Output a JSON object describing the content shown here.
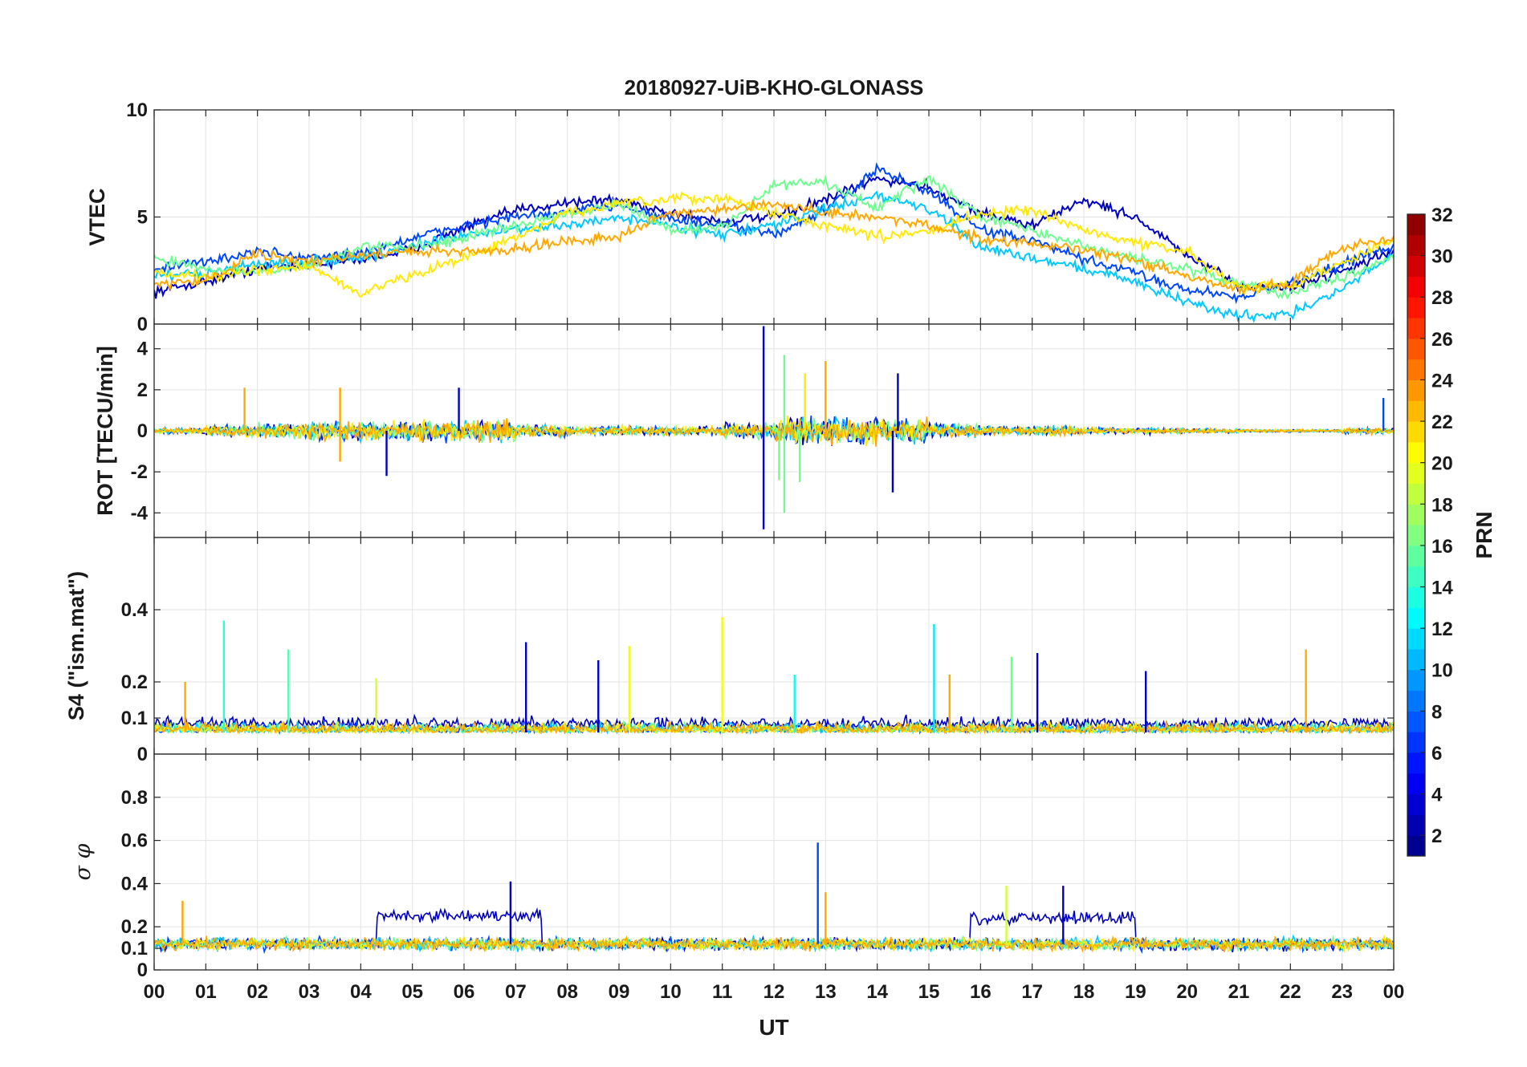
{
  "chart_data": {
    "type": "line",
    "title": "20180927-UiB-KHO-GLONASS",
    "xlabel": "UT",
    "x_tick_labels": [
      "00",
      "01",
      "02",
      "03",
      "04",
      "05",
      "06",
      "07",
      "08",
      "09",
      "10",
      "11",
      "12",
      "13",
      "14",
      "15",
      "16",
      "17",
      "18",
      "19",
      "20",
      "21",
      "22",
      "23",
      "00"
    ],
    "xlim_hours": [
      0,
      24
    ],
    "grid": true,
    "colorbar": {
      "label": "PRN",
      "colormap": "jet",
      "range": [
        1,
        32
      ],
      "tick_labels": [
        "2",
        "4",
        "6",
        "8",
        "10",
        "12",
        "14",
        "16",
        "18",
        "20",
        "22",
        "24",
        "26",
        "28",
        "30",
        "32"
      ]
    },
    "panels": [
      {
        "id": "vtec",
        "ylabel": "VTEC",
        "ylim": [
          0,
          10
        ],
        "ytick_labels": [
          "0",
          "5",
          "10"
        ],
        "ytick_values": [
          0,
          5,
          10
        ],
        "series": [
          {
            "prn": 3,
            "x": [
              0.0,
              1.0,
              2.0,
              3.0,
              4.0,
              5.0,
              6.0,
              7.0,
              8.0,
              9.0,
              10.0,
              11.0,
              12.0,
              13.0,
              14.0,
              15.0,
              16.0,
              17.0,
              18.0,
              19.0,
              20.0,
              21.0,
              22.0,
              23.0,
              24.0
            ],
            "y": [
              1.5,
              2.0,
              2.6,
              2.8,
              3.0,
              3.5,
              4.5,
              5.3,
              5.7,
              5.8,
              5.2,
              4.8,
              5.0,
              5.8,
              6.8,
              6.4,
              5.2,
              4.6,
              5.8,
              5.0,
              3.2,
              1.8,
              1.7,
              2.5,
              3.4
            ]
          },
          {
            "prn": 7,
            "x": [
              0.0,
              1.0,
              2.0,
              3.0,
              4.0,
              5.0,
              6.0,
              7.0,
              8.0,
              9.0,
              10.0,
              11.0,
              12.0,
              13.0,
              14.0,
              15.0,
              16.0,
              17.0,
              18.0,
              19.0,
              20.0,
              21.0,
              22.0,
              23.0,
              24.0
            ],
            "y": [
              2.6,
              2.9,
              3.4,
              3.1,
              3.3,
              4.0,
              4.6,
              5.0,
              5.2,
              5.6,
              4.9,
              4.6,
              4.2,
              5.3,
              7.2,
              6.2,
              4.4,
              3.9,
              3.0,
              2.4,
              1.6,
              1.3,
              1.9,
              2.8,
              3.7
            ]
          },
          {
            "prn": 11,
            "x": [
              0.0,
              1.0,
              2.0,
              3.0,
              4.0,
              5.0,
              6.0,
              7.0,
              8.0,
              9.0,
              10.0,
              11.0,
              12.0,
              13.0,
              14.0,
              15.0,
              16.0,
              17.0,
              18.0,
              19.0,
              20.0,
              21.0,
              22.0,
              23.0,
              24.0
            ],
            "y": [
              2.2,
              2.4,
              2.8,
              2.9,
              3.1,
              3.6,
              4.2,
              4.4,
              4.6,
              5.0,
              4.6,
              4.2,
              4.6,
              5.4,
              6.0,
              5.4,
              3.6,
              3.1,
              2.6,
              2.0,
              1.0,
              0.4,
              0.5,
              1.6,
              3.3
            ]
          },
          {
            "prn": 16,
            "x": [
              0.0,
              1.0,
              2.0,
              3.0,
              4.0,
              5.0,
              6.0,
              7.0,
              8.0,
              9.0,
              10.0,
              11.0,
              12.0,
              13.0,
              14.0,
              15.0,
              16.0,
              17.0,
              18.0,
              19.0,
              20.0,
              21.0,
              22.0,
              23.0,
              24.0
            ],
            "y": [
              3.1,
              2.6,
              2.4,
              2.7,
              3.6,
              3.6,
              4.0,
              4.6,
              5.2,
              5.6,
              4.4,
              4.5,
              6.5,
              6.6,
              5.4,
              6.8,
              5.0,
              4.4,
              3.6,
              3.1,
              2.6,
              1.9,
              1.4,
              2.2,
              3.2
            ]
          },
          {
            "prn": 21,
            "x": [
              0.0,
              1.0,
              2.0,
              3.0,
              4.0,
              5.0,
              6.0,
              7.0,
              8.0,
              9.0,
              10.0,
              11.0,
              12.0,
              13.0,
              14.0,
              15.0,
              16.0,
              17.0,
              18.0,
              19.0,
              20.0,
              21.0,
              22.0,
              23.0,
              24.0
            ],
            "y": [
              2.4,
              2.2,
              2.5,
              2.7,
              1.4,
              2.3,
              3.1,
              4.0,
              5.2,
              5.6,
              5.8,
              5.9,
              5.2,
              4.6,
              4.1,
              4.3,
              5.2,
              5.3,
              4.4,
              3.8,
              3.4,
              1.7,
              1.8,
              2.9,
              3.9
            ]
          },
          {
            "prn": 23,
            "x": [
              0.0,
              1.0,
              2.0,
              3.0,
              4.0,
              5.0,
              6.0,
              7.0,
              8.0,
              9.0,
              10.0,
              11.0,
              12.0,
              13.0,
              14.0,
              15.0,
              16.0,
              17.0,
              18.0,
              19.0,
              20.0,
              21.0,
              22.0,
              23.0,
              24.0
            ],
            "y": [
              1.8,
              2.1,
              3.3,
              2.9,
              3.2,
              3.4,
              3.4,
              3.5,
              3.9,
              4.1,
              5.2,
              5.3,
              5.6,
              5.2,
              5.0,
              4.6,
              4.0,
              3.8,
              3.4,
              3.0,
              2.2,
              1.6,
              1.9,
              3.6,
              4.0
            ]
          }
        ]
      },
      {
        "id": "rot",
        "ylabel": "ROT [TECU/min]",
        "ylim": [
          -5.2,
          5.2
        ],
        "ytick_labels": [
          "-4",
          "-2",
          "0",
          "2",
          "4"
        ],
        "ytick_values": [
          -4,
          -2,
          0,
          2,
          4
        ],
        "series_summary": {
          "baseline": 0,
          "typical_amplitude_by_hour": [
            0.2,
            0.4,
            0.5,
            0.6,
            0.6,
            0.7,
            0.7,
            0.4,
            0.3,
            0.3,
            0.3,
            0.5,
            0.9,
            0.9,
            0.8,
            0.5,
            0.3,
            0.3,
            0.2,
            0.2,
            0.15,
            0.1,
            0.1,
            0.2
          ],
          "spikes": [
            {
              "x": 1.75,
              "y": 2.1,
              "prn": 23
            },
            {
              "x": 3.6,
              "y": 2.1,
              "prn": 23
            },
            {
              "x": 3.6,
              "y": -1.5,
              "prn": 23
            },
            {
              "x": 4.5,
              "y": -2.2,
              "prn": 3
            },
            {
              "x": 5.9,
              "y": 2.1,
              "prn": 3
            },
            {
              "x": 11.8,
              "y": 5.1,
              "prn": 3
            },
            {
              "x": 11.8,
              "y": -4.8,
              "prn": 3
            },
            {
              "x": 12.1,
              "y": -2.4,
              "prn": 16
            },
            {
              "x": 12.2,
              "y": 3.7,
              "prn": 16
            },
            {
              "x": 12.2,
              "y": -4.0,
              "prn": 16
            },
            {
              "x": 12.5,
              "y": -2.5,
              "prn": 16
            },
            {
              "x": 12.6,
              "y": 2.8,
              "prn": 21
            },
            {
              "x": 13.0,
              "y": 3.4,
              "prn": 23
            },
            {
              "x": 14.4,
              "y": 2.8,
              "prn": 3
            },
            {
              "x": 14.3,
              "y": -3.0,
              "prn": 3
            },
            {
              "x": 23.8,
              "y": 1.6,
              "prn": 7
            }
          ]
        }
      },
      {
        "id": "s4",
        "ylabel": "S4 (\"ism.mat\")",
        "ylim": [
          0,
          0.6
        ],
        "ytick_labels": [
          "0",
          "0.1",
          "0.2",
          "0.4"
        ],
        "ytick_values": [
          0,
          0.1,
          0.2,
          0.4
        ],
        "series_summary": {
          "baseline": 0.06,
          "spikes": [
            {
              "x": 0.6,
              "y": 0.2,
              "prn": 23
            },
            {
              "x": 1.35,
              "y": 0.37,
              "prn": 14
            },
            {
              "x": 2.6,
              "y": 0.29,
              "prn": 15
            },
            {
              "x": 4.3,
              "y": 0.21,
              "prn": 19
            },
            {
              "x": 7.2,
              "y": 0.31,
              "prn": 3
            },
            {
              "x": 8.6,
              "y": 0.26,
              "prn": 3
            },
            {
              "x": 9.2,
              "y": 0.3,
              "prn": 20
            },
            {
              "x": 11.0,
              "y": 0.38,
              "prn": 20
            },
            {
              "x": 12.4,
              "y": 0.22,
              "prn": 13
            },
            {
              "x": 15.1,
              "y": 0.36,
              "prn": 12
            },
            {
              "x": 15.4,
              "y": 0.22,
              "prn": 23
            },
            {
              "x": 16.6,
              "y": 0.27,
              "prn": 16
            },
            {
              "x": 17.1,
              "y": 0.28,
              "prn": 3
            },
            {
              "x": 19.2,
              "y": 0.23,
              "prn": 3
            },
            {
              "x": 22.3,
              "y": 0.29,
              "prn": 23
            }
          ]
        }
      },
      {
        "id": "sigma",
        "ylabel": "σ φ",
        "ylim": [
          0,
          1.0
        ],
        "ytick_labels": [
          "0",
          "0.1",
          "0.2",
          "0.4",
          "0.6",
          "0.8"
        ],
        "ytick_values": [
          0,
          0.1,
          0.2,
          0.4,
          0.6,
          0.8
        ],
        "series_summary": {
          "baseline": 0.12,
          "raised_intervals": [
            {
              "x0": 4.3,
              "x1": 7.5,
              "level": 0.25,
              "prn": 3
            },
            {
              "x0": 15.8,
              "x1": 19.0,
              "level": 0.24,
              "prn": 3
            }
          ],
          "spikes": [
            {
              "x": 0.55,
              "y": 0.32,
              "prn": 23
            },
            {
              "x": 6.9,
              "y": 0.41,
              "prn": 3
            },
            {
              "x": 12.85,
              "y": 0.59,
              "prn": 7
            },
            {
              "x": 13.0,
              "y": 0.36,
              "prn": 23
            },
            {
              "x": 16.5,
              "y": 0.39,
              "prn": 19
            },
            {
              "x": 17.6,
              "y": 0.39,
              "prn": 3
            }
          ]
        }
      }
    ]
  }
}
